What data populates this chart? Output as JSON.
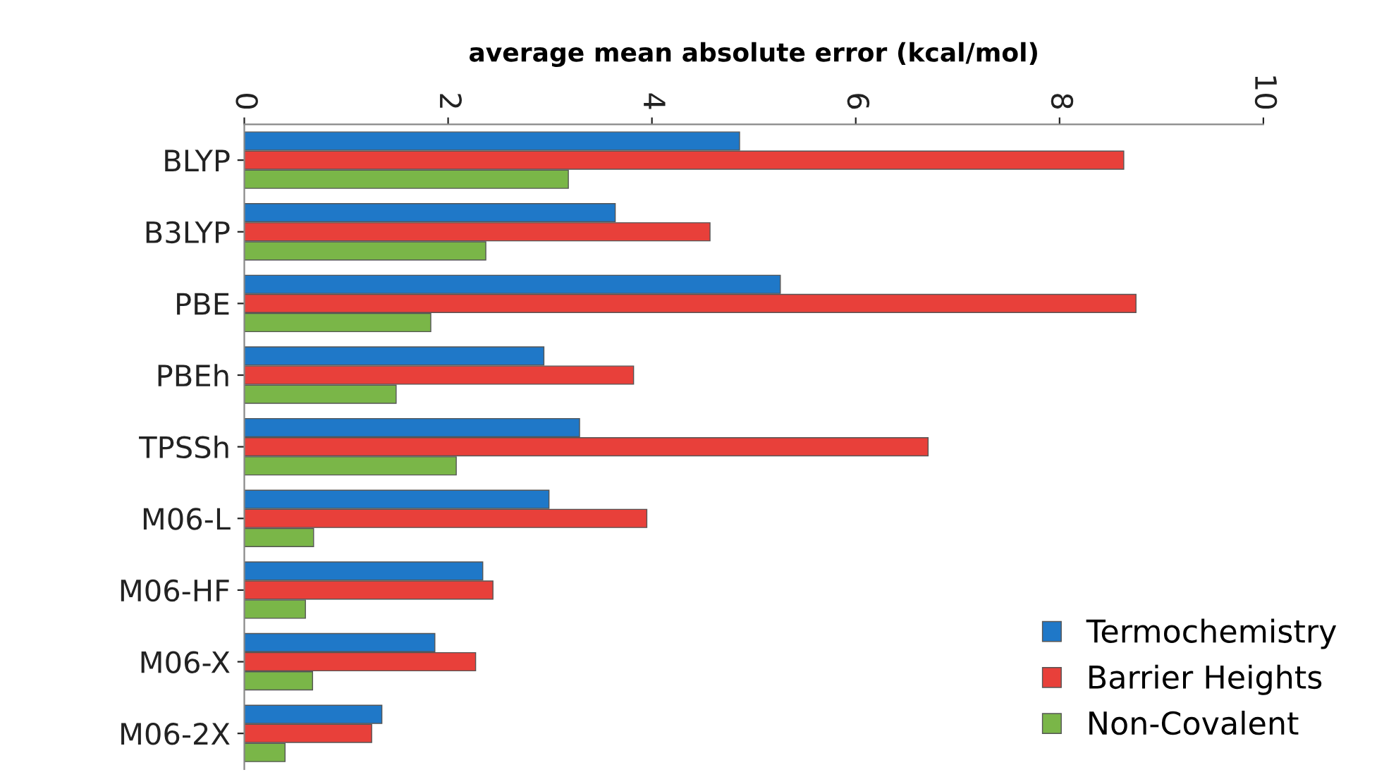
{
  "chart_data": {
    "type": "bar",
    "orientation": "horizontal",
    "xlabel": "average mean absolute error (kcal/mol)",
    "categories": [
      "BLYP",
      "B3LYP",
      "PBE",
      "PBEh",
      "TPSSh",
      "M06-L",
      "M06-HF",
      "M06-X",
      "M06-2X"
    ],
    "series": [
      {
        "name": "Termochemistry",
        "color": "#1f78c8",
        "values": [
          4.86,
          3.64,
          5.26,
          2.94,
          3.29,
          2.99,
          2.34,
          1.87,
          1.35
        ]
      },
      {
        "name": "Barrier Heights",
        "color": "#e8403a",
        "values": [
          8.63,
          4.57,
          8.75,
          3.82,
          6.71,
          3.95,
          2.44,
          2.27,
          1.25
        ]
      },
      {
        "name": "Non-Covalent",
        "color": "#7ab648",
        "values": [
          3.18,
          2.37,
          1.83,
          1.49,
          2.08,
          0.68,
          0.6,
          0.67,
          0.4
        ]
      }
    ],
    "xlim": [
      0,
      10
    ],
    "xticks": [
      0,
      2,
      4,
      6,
      8,
      10
    ],
    "grid": false,
    "legend": "bottom right"
  }
}
